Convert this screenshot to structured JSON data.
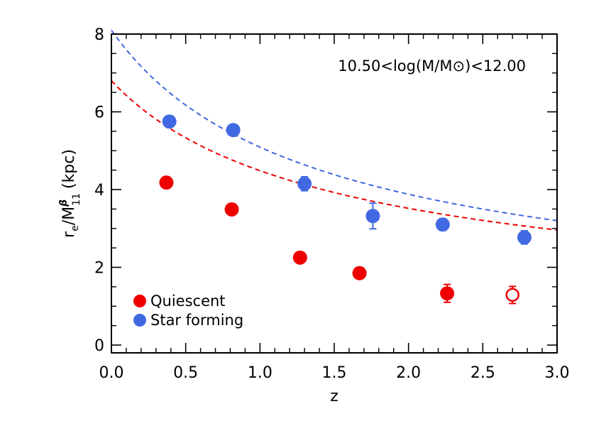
{
  "chart_data": {
    "type": "scatter",
    "annotation": "10.50<log(M/M⊙)<12.00",
    "xlabel": "z",
    "ylabel": "r_e/M_11^β (kpc)",
    "ylabel_parts": {
      "r": "r",
      "e": "e",
      "slash": "/M",
      "beta": "β",
      "sub11": "11",
      "unit": "(kpc)"
    },
    "xlim": [
      0.0,
      3.0
    ],
    "ylim": [
      -0.2,
      8.0
    ],
    "xticks": [
      "0.0",
      "0.5",
      "1.0",
      "1.5",
      "2.0",
      "2.5",
      "3.0"
    ],
    "xtick_values": [
      0.0,
      0.5,
      1.0,
      1.5,
      2.0,
      2.5,
      3.0
    ],
    "yticks": [
      "0",
      "2",
      "4",
      "6",
      "8"
    ],
    "ytick_values": [
      0,
      2,
      4,
      6,
      8
    ],
    "legend_position": "lower-left",
    "series": [
      {
        "name": "Quiescent",
        "color": "#ee0000",
        "x": [
          0.37,
          0.81,
          1.27,
          1.67,
          2.26,
          2.7
        ],
        "y": [
          4.18,
          3.49,
          2.25,
          1.85,
          1.33,
          1.29
        ],
        "yerr": [
          0.07,
          0.07,
          0.08,
          0.14,
          0.23,
          0.22
        ],
        "hollow": [
          false,
          false,
          false,
          false,
          false,
          true
        ],
        "fit_curve": {
          "a": 6.8,
          "b": 0.6
        }
      },
      {
        "name": "Star forming",
        "color": "#4169e1",
        "x": [
          0.39,
          0.82,
          1.3,
          1.76,
          2.23,
          2.78
        ],
        "y": [
          5.75,
          5.53,
          4.15,
          3.32,
          3.1,
          2.77
        ],
        "yerr": [
          0.07,
          0.07,
          0.18,
          0.33,
          0.15,
          0.17
        ],
        "hollow": [
          false,
          false,
          false,
          false,
          false,
          false
        ],
        "fit_curve": {
          "a": 8.1,
          "b": 0.67
        }
      }
    ]
  }
}
